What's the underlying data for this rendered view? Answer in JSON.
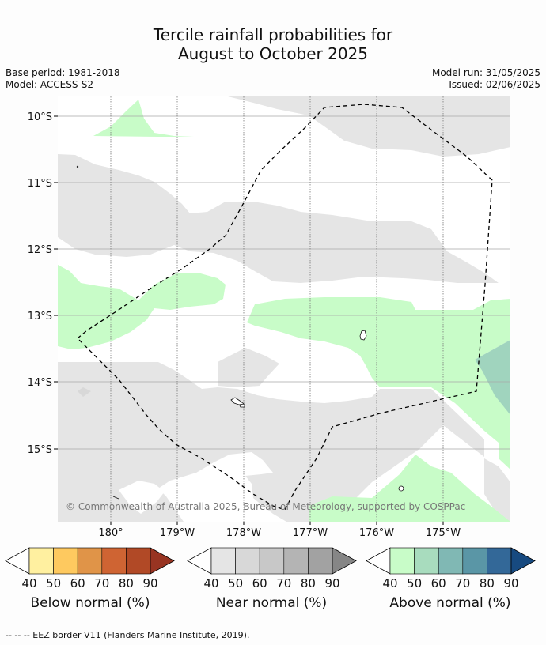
{
  "title_line1": "Tercile rainfall probabilities for",
  "title_line2": "August to October 2025",
  "base_period": "Base period: 1981-2018",
  "model": "Model: ACCESS-S2",
  "model_run": "Model run: 31/05/2025",
  "issued": "Issued: 02/06/2025",
  "copyright": "© Commonwealth of Australia 2025, Bureau of Meteorology, supported by COSPPac",
  "lat_labels": [
    "10°S",
    "11°S",
    "12°S",
    "13°S",
    "14°S",
    "15°S"
  ],
  "lon_labels": [
    "180°",
    "179°W",
    "178°W",
    "177°W",
    "176°W",
    "175°W"
  ],
  "colorbars": [
    {
      "label": "Below normal (%)",
      "ticks": [
        "40",
        "50",
        "60",
        "70",
        "80",
        "90"
      ],
      "colors": [
        "#fff0a0",
        "#fec95f",
        "#e09448",
        "#cf6433",
        "#b14926",
        "#983422"
      ]
    },
    {
      "label": "Near normal (%)",
      "ticks": [
        "40",
        "50",
        "60",
        "70",
        "80",
        "90"
      ],
      "colors": [
        "#e5e5e5",
        "#d8d8d8",
        "#c8c8c8",
        "#b4b4b4",
        "#a2a2a2",
        "#868686"
      ]
    },
    {
      "label": "Above normal (%)",
      "ticks": [
        "40",
        "50",
        "60",
        "70",
        "80",
        "90"
      ],
      "colors": [
        "#c8fcc8",
        "#a8dcbe",
        "#80b8b4",
        "#5a96a6",
        "#336898",
        "#174a80"
      ]
    }
  ],
  "footer": "-- -- -- EEZ border V11 (Flanders Marine Institute, 2019)."
}
